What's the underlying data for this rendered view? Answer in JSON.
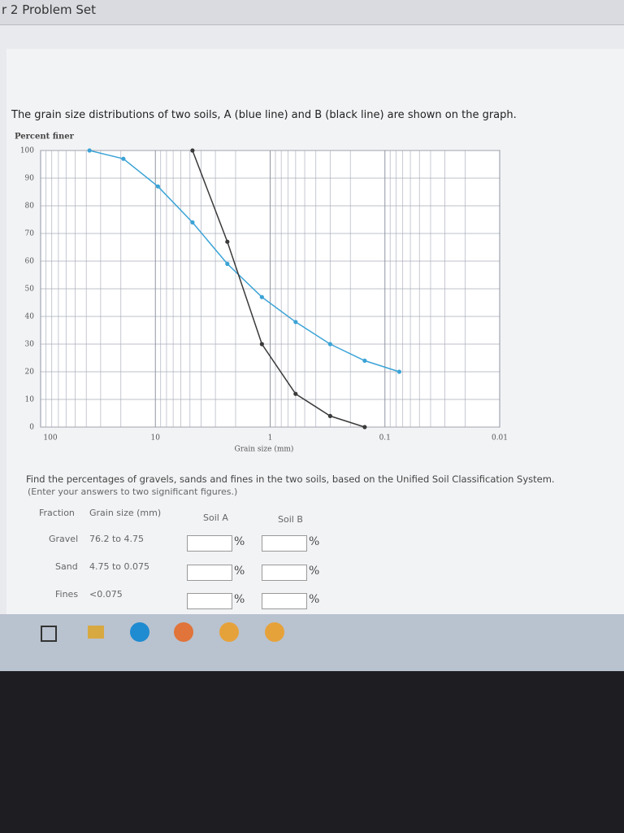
{
  "header": {
    "title": "r 2 Problem Set"
  },
  "question": {
    "intro": "The grain size distributions of two soils, A (blue line) and B (black line) are shown on the graph.",
    "instructions": "Find the percentages of gravels, sands and fines in the two soils, based on the Unified Soil Classification System.",
    "note": "(Enter your answers to two significant figures.)"
  },
  "chart_data": {
    "type": "line",
    "y_label": "Percent finer",
    "x_label": "Grain size (mm)",
    "x": [
      37.5,
      19,
      9.5,
      4.75,
      2.36,
      1.18,
      0.6,
      0.3,
      0.15,
      0.075
    ],
    "series": [
      {
        "name": "A",
        "color": "#3ba3d6",
        "values": [
          100,
          97,
          87,
          74,
          59,
          47,
          38,
          30,
          24,
          20
        ]
      },
      {
        "name": "B",
        "color": "#3a3a3a",
        "values": [
          null,
          null,
          null,
          100,
          67,
          30,
          12,
          4,
          0,
          null
        ]
      }
    ],
    "xlim": [
      100,
      0.01
    ],
    "xticks": [
      100,
      10,
      1,
      0.1,
      0.01
    ],
    "xscale": "log",
    "ylim": [
      0,
      100
    ],
    "yticks": [
      0,
      10,
      20,
      30,
      40,
      50,
      60,
      70,
      80,
      90,
      100
    ],
    "grid": true
  },
  "table": {
    "headers": [
      "Fraction",
      "Grain size (mm)",
      "Soil A",
      "Soil B"
    ],
    "rows": [
      [
        "Gravel",
        "76.2 to 4.75"
      ],
      [
        "Sand",
        "4.75 to 0.075"
      ],
      [
        "Fines",
        "<0.075"
      ]
    ],
    "unit": "%"
  }
}
